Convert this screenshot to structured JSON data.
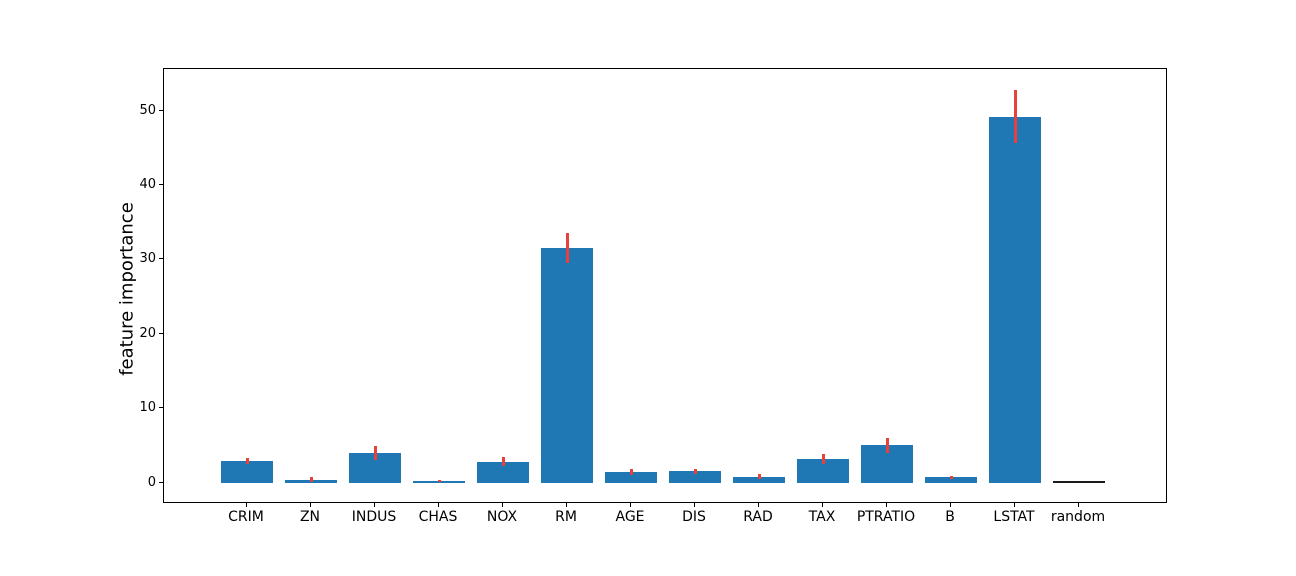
{
  "chart_data": {
    "type": "bar",
    "title": "",
    "xlabel": "",
    "ylabel": "feature importance",
    "categories": [
      "CRIM",
      "ZN",
      "INDUS",
      "CHAS",
      "NOX",
      "RM",
      "AGE",
      "DIS",
      "RAD",
      "TAX",
      "PTRATIO",
      "B",
      "LSTAT",
      "random"
    ],
    "values": [
      2.9,
      0.4,
      4.0,
      0.2,
      2.8,
      31.5,
      1.4,
      1.5,
      0.8,
      3.2,
      5.0,
      0.7,
      49.2,
      0.05
    ],
    "errors": [
      0.4,
      0.3,
      0.9,
      0.1,
      0.6,
      2.0,
      0.4,
      0.4,
      0.35,
      0.7,
      1.0,
      0.25,
      3.6,
      0.0
    ],
    "yticks": [
      0,
      10,
      20,
      30,
      40,
      50
    ],
    "ylim": [
      -2.6,
      55.6
    ],
    "grid": false,
    "legend": "none",
    "bar_color": "#1f77b4",
    "error_color": "#e8413c",
    "random_bar_color": "#1a1a1a",
    "axis_color": "#000000"
  }
}
